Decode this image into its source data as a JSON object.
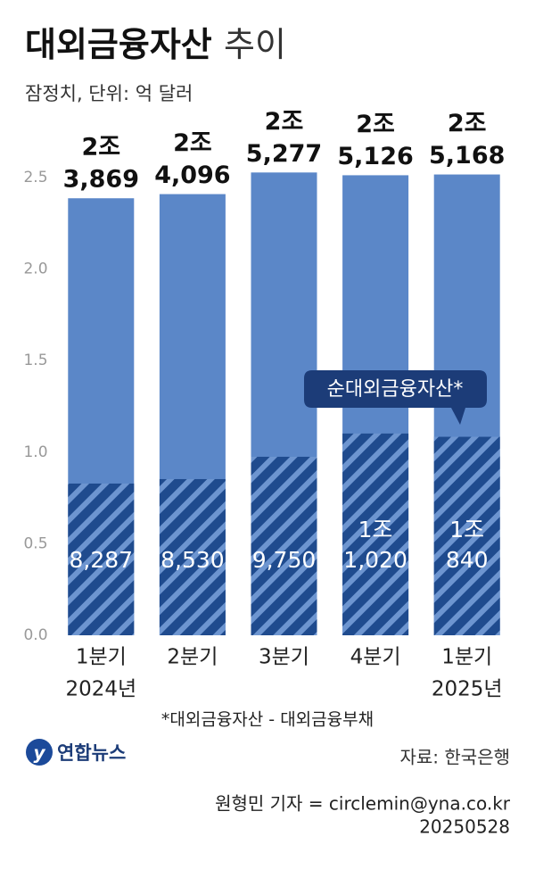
{
  "chart_data": {
    "type": "bar",
    "title": "대외금융자산",
    "title_suffix": "추이",
    "subtitle": "잠정치, 단위: 억 달러",
    "categories": [
      "1분기",
      "2분기",
      "3분기",
      "4분기",
      "1분기"
    ],
    "category_years": [
      "2024년",
      null,
      null,
      null,
      "2025년"
    ],
    "series": [
      {
        "color": "#5b87c8",
        "values": [
          2.3869,
          2.4096,
          2.5277,
          2.5126,
          2.5168
        ],
        "value_labels": [
          [
            "2조",
            "3,869"
          ],
          [
            "2조",
            "4,096"
          ],
          [
            "2조",
            "5,277"
          ],
          [
            "2조",
            "5,126"
          ],
          [
            "2조",
            "5,168"
          ]
        ]
      },
      {
        "name": "순대외금융자산*",
        "color": "#1f4b8e",
        "values": [
          0.8287,
          0.853,
          0.975,
          1.102,
          1.084
        ],
        "value_labels": [
          [
            "8,287"
          ],
          [
            "8,530"
          ],
          [
            "9,750"
          ],
          [
            "1조",
            "1,020"
          ],
          [
            "1조",
            "840"
          ]
        ]
      }
    ],
    "ylim": [
      0,
      2.5
    ],
    "yticks": [
      {
        "value": 0,
        "label": "0.0"
      },
      0.5,
      {
        "value": 1,
        "label": "1.0"
      },
      1.5,
      {
        "value": 2,
        "label": "2.0"
      },
      2.5
    ],
    "footnote": "*대외금융자산 - 대외금융부채",
    "logo": "연합뉴스",
    "source": "자료: 한국은행",
    "credit": "원형민 기자 = circlemin@yna.co.kr",
    "date": "20250528"
  }
}
